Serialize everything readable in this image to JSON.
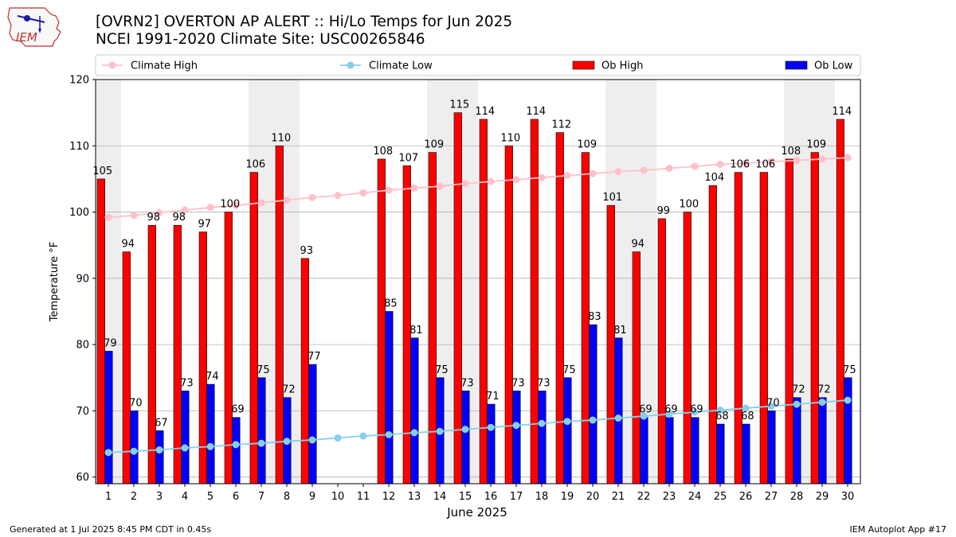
{
  "header": {
    "logo_text": "IEM",
    "title_line1": "[OVRN2] OVERTON AP ALERT :: Hi/Lo Temps for Jun 2025",
    "title_line2": "NCEI 1991-2020 Climate Site: USC00265846"
  },
  "footer": {
    "generated": "Generated at 1 Jul 2025 8:45 PM CDT in 0.45s",
    "app": "IEM Autoplot App #17"
  },
  "colors": {
    "ob_high": "#ff0000",
    "ob_low": "#0000ff",
    "climate_high": "#ffc0cb",
    "climate_low": "#87ceeb",
    "weekend_shade": "#eeeeee",
    "grid": "#b0b0b0"
  },
  "chart_data": {
    "type": "bar",
    "xlabel": "June 2025",
    "ylabel": "Temperature °F",
    "ylim": [
      59,
      120
    ],
    "yticks": [
      60,
      70,
      80,
      90,
      100,
      110,
      120
    ],
    "grid": "horizontal",
    "legend_position": "top",
    "legend": [
      "Climate High",
      "Climate Low",
      "Ob High",
      "Ob Low"
    ],
    "days": [
      1,
      2,
      3,
      4,
      5,
      6,
      7,
      8,
      9,
      10,
      11,
      12,
      13,
      14,
      15,
      16,
      17,
      18,
      19,
      20,
      21,
      22,
      23,
      24,
      25,
      26,
      27,
      28,
      29,
      30
    ],
    "weekend_days": [
      1,
      7,
      8,
      14,
      15,
      21,
      22,
      28,
      29
    ],
    "series": [
      {
        "name": "Ob High",
        "kind": "bar",
        "values": [
          105,
          94,
          98,
          98,
          97,
          100,
          106,
          110,
          93,
          null,
          null,
          108,
          107,
          109,
          115,
          114,
          110,
          114,
          112,
          109,
          101,
          94,
          99,
          100,
          104,
          106,
          106,
          108,
          109,
          114
        ]
      },
      {
        "name": "Ob Low",
        "kind": "bar",
        "values": [
          79,
          70,
          67,
          73,
          74,
          69,
          75,
          72,
          77,
          null,
          null,
          85,
          81,
          75,
          73,
          71,
          73,
          73,
          75,
          83,
          81,
          69,
          69,
          69,
          68,
          68,
          70,
          72,
          72,
          75
        ]
      },
      {
        "name": "Climate High",
        "kind": "line",
        "values": [
          99.2,
          99.5,
          99.9,
          100.3,
          100.7,
          101.0,
          101.4,
          101.8,
          102.2,
          102.5,
          102.9,
          103.3,
          103.6,
          103.9,
          104.3,
          104.6,
          104.9,
          105.2,
          105.5,
          105.8,
          106.1,
          106.3,
          106.6,
          106.9,
          107.2,
          107.4,
          107.6,
          107.8,
          108.0,
          108.2
        ]
      },
      {
        "name": "Climate Low",
        "kind": "line",
        "values": [
          63.7,
          63.9,
          64.1,
          64.4,
          64.6,
          64.9,
          65.1,
          65.4,
          65.6,
          65.9,
          66.2,
          66.4,
          66.7,
          66.9,
          67.2,
          67.5,
          67.8,
          68.1,
          68.4,
          68.6,
          68.9,
          69.2,
          69.5,
          69.8,
          70.1,
          70.4,
          70.7,
          71.0,
          71.3,
          71.6
        ]
      }
    ]
  }
}
